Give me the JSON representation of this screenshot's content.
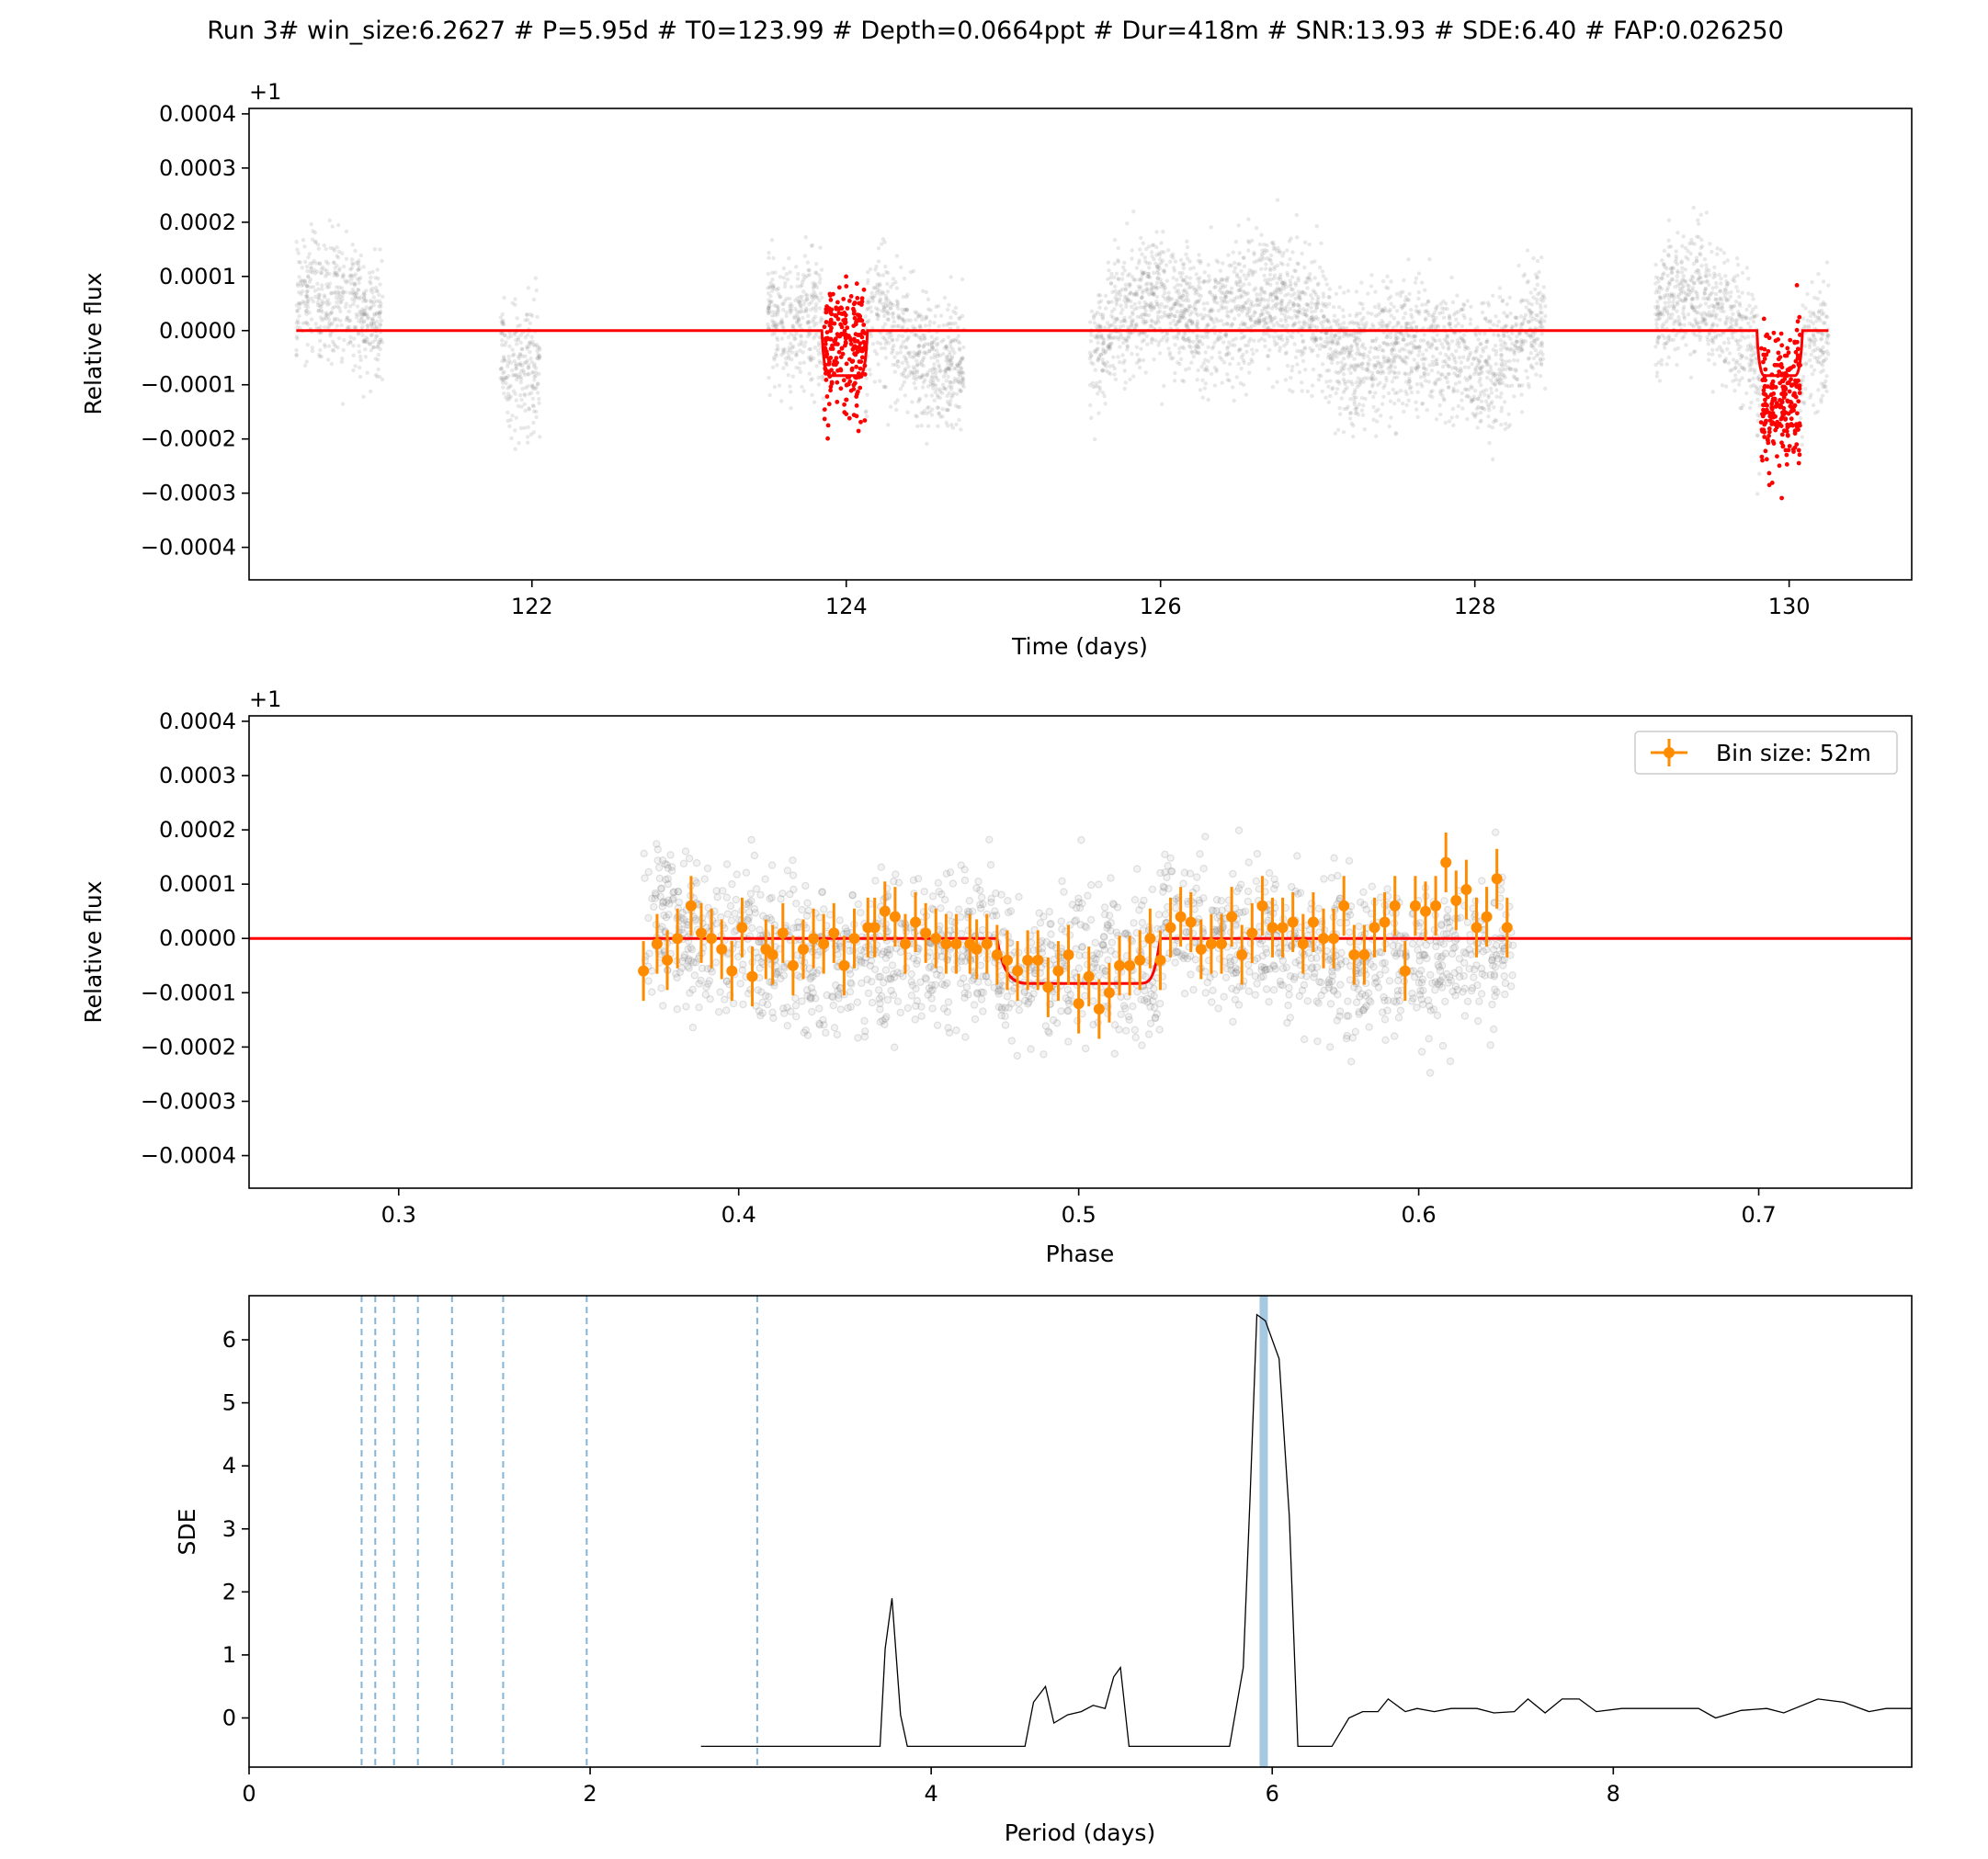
{
  "figure_title": "Run 3# win_size:6.2627 # P=5.95d # T0=123.99 # Depth=0.0664ppt # Dur=418m # SNR:13.93 # SDE:6.40 # FAP:0.026250",
  "colors": {
    "model": "#ff0000",
    "in_transit": "#ff0000",
    "raw_points": "#808080",
    "binned": "#ff8c00",
    "periodogram_line": "#000000",
    "harmonics": "#1f77b4",
    "period_band": "#1f77b4"
  },
  "chart_data": [
    {
      "type": "scatter",
      "name": "light-curve",
      "xlabel": "Time (days)",
      "ylabel": "Relative flux",
      "offset_label": "+1",
      "xlim": [
        120.2,
        130.78
      ],
      "ylim": [
        -0.00046,
        0.00041
      ],
      "xticks": [
        122,
        124,
        126,
        128,
        130
      ],
      "yticks": [
        -0.0004,
        -0.0003,
        -0.0002,
        -0.0001,
        0.0,
        0.0001,
        0.0002,
        0.0003,
        0.0004
      ],
      "ytick_labels": [
        "−0.0004",
        "−0.0003",
        "−0.0002",
        "−0.0001",
        "0.0000",
        "0.0001",
        "0.0002",
        "0.0003",
        "0.0004"
      ],
      "segments": [
        [
          120.5,
          121.05
        ],
        [
          121.8,
          122.05
        ],
        [
          123.5,
          124.75
        ],
        [
          125.55,
          128.45
        ],
        [
          129.15,
          130.25
        ]
      ],
      "in_transit_windows": [
        [
          123.86,
          124.12
        ],
        [
          129.82,
          130.07
        ]
      ],
      "model": {
        "baseline": 0.0,
        "depth": -8.3e-05,
        "x_start": 120.5,
        "x_end": 130.25,
        "transits": [
          {
            "t0": 123.99,
            "half_width": 0.145,
            "ingress": 0.04,
            "gaps_after": [
              124.75,
              125.55
            ]
          },
          {
            "t0": 129.94,
            "half_width": 0.145,
            "ingress": 0.04
          }
        ]
      }
    },
    {
      "type": "scatter",
      "name": "phase-folded",
      "xlabel": "Phase",
      "ylabel": "Relative flux",
      "offset_label": "+1",
      "xlim": [
        0.256,
        0.745
      ],
      "ylim": [
        -0.00046,
        0.00041
      ],
      "xticks": [
        0.3,
        0.4,
        0.5,
        0.6,
        0.7
      ],
      "xtick_labels": [
        "0.3",
        "0.4",
        "0.5",
        "0.6",
        "0.7"
      ],
      "yticks": [
        -0.0004,
        -0.0003,
        -0.0002,
        -0.0001,
        0.0,
        0.0001,
        0.0002,
        0.0003,
        0.0004
      ],
      "ytick_labels": [
        "−0.0004",
        "−0.0003",
        "−0.0002",
        "−0.0001",
        "0.0000",
        "0.0001",
        "0.0002",
        "0.0003",
        "0.0004"
      ],
      "phase_range": [
        0.372,
        0.628
      ],
      "legend": {
        "label": "Bin size: 52m",
        "position": "upper right"
      },
      "model": {
        "baseline": 0.0,
        "depth": -8.3e-05,
        "ingress_start": 0.476,
        "flat_start": 0.486,
        "flat_end": 0.517,
        "egress_end": 0.524,
        "x_start": 0.256,
        "x_end": 0.745
      },
      "binned": {
        "x": [
          0.372,
          0.376,
          0.379,
          0.382,
          0.386,
          0.389,
          0.392,
          0.395,
          0.398,
          0.401,
          0.404,
          0.408,
          0.41,
          0.413,
          0.416,
          0.419,
          0.422,
          0.425,
          0.428,
          0.431,
          0.434,
          0.438,
          0.44,
          0.443,
          0.446,
          0.449,
          0.452,
          0.455,
          0.458,
          0.461,
          0.464,
          0.468,
          0.47,
          0.473,
          0.476,
          0.479,
          0.482,
          0.485,
          0.488,
          0.491,
          0.494,
          0.497,
          0.5,
          0.503,
          0.506,
          0.509,
          0.512,
          0.515,
          0.518,
          0.521,
          0.524,
          0.527,
          0.53,
          0.533,
          0.536,
          0.539,
          0.542,
          0.545,
          0.548,
          0.551,
          0.554,
          0.557,
          0.56,
          0.563,
          0.566,
          0.569,
          0.572,
          0.575,
          0.578,
          0.581,
          0.584,
          0.587,
          0.59,
          0.593,
          0.596,
          0.599,
          0.602,
          0.605,
          0.608,
          0.611,
          0.614,
          0.617,
          0.62,
          0.623,
          0.626
        ],
        "y": [
          -6e-05,
          -1e-05,
          -4e-05,
          0.0,
          6e-05,
          1e-05,
          0.0,
          -2e-05,
          -6e-05,
          2e-05,
          -7e-05,
          -2e-05,
          -3e-05,
          1e-05,
          -5e-05,
          -2e-05,
          0.0,
          -1e-05,
          1e-05,
          -5e-05,
          0.0,
          2e-05,
          2e-05,
          5e-05,
          4e-05,
          -1e-05,
          3e-05,
          1e-05,
          0.0,
          -1e-05,
          -1e-05,
          -1e-05,
          -2e-05,
          -1e-05,
          -3e-05,
          -4e-05,
          -6e-05,
          -4e-05,
          -4e-05,
          -9e-05,
          -6e-05,
          -3e-05,
          -0.00012,
          -7e-05,
          -0.00013,
          -0.0001,
          -5e-05,
          -5e-05,
          -4e-05,
          0.0,
          -4e-05,
          2e-05,
          4e-05,
          3e-05,
          -2e-05,
          -1e-05,
          -1e-05,
          4e-05,
          -3e-05,
          1e-05,
          6e-05,
          2e-05,
          2e-05,
          3e-05,
          -1e-05,
          3e-05,
          0.0,
          0.0,
          6e-05,
          -3e-05,
          -3e-05,
          2e-05,
          3e-05,
          6e-05,
          -6e-05,
          6e-05,
          5e-05,
          6e-05,
          0.00014,
          7e-05,
          9e-05,
          2e-05,
          4e-05,
          0.00011,
          2e-05
        ],
        "yerr": 5.5e-05
      }
    },
    {
      "type": "line",
      "name": "periodogram",
      "xlabel": "Period (days)",
      "ylabel": "SDE",
      "xlim": [
        0,
        9.75
      ],
      "ylim": [
        -0.78,
        6.7
      ],
      "xticks": [
        0,
        2,
        4,
        6,
        8
      ],
      "yticks": [
        0,
        1,
        2,
        3,
        4,
        5,
        6
      ],
      "period": 5.95,
      "harmonics": [
        0.66,
        0.74,
        0.85,
        0.99,
        1.19,
        1.49,
        1.98,
        2.98
      ],
      "x": [
        2.65,
        3.7,
        3.73,
        3.77,
        3.82,
        3.86,
        4.55,
        4.6,
        4.67,
        4.72,
        4.8,
        4.88,
        4.95,
        5.02,
        5.07,
        5.11,
        5.16,
        5.23,
        5.75,
        5.83,
        5.87,
        5.91,
        5.96,
        6.04,
        6.1,
        6.15,
        6.2,
        6.35,
        6.45,
        6.53,
        6.62,
        6.68,
        6.78,
        6.85,
        6.95,
        7.05,
        7.2,
        7.3,
        7.42,
        7.5,
        7.6,
        7.7,
        7.8,
        7.9,
        8.05,
        8.2,
        8.5,
        8.6,
        8.75,
        8.9,
        9.0,
        9.2,
        9.35,
        9.5,
        9.6,
        9.75
      ],
      "y": [
        -0.45,
        -0.45,
        1.1,
        1.9,
        0.05,
        -0.45,
        -0.45,
        0.25,
        0.5,
        -0.08,
        0.05,
        0.1,
        0.2,
        0.15,
        0.65,
        0.8,
        -0.45,
        -0.45,
        -0.45,
        0.8,
        3.5,
        6.4,
        6.3,
        5.7,
        3.2,
        -0.45,
        -0.45,
        -0.45,
        0.0,
        0.1,
        0.1,
        0.3,
        0.1,
        0.15,
        0.1,
        0.15,
        0.15,
        0.08,
        0.1,
        0.3,
        0.08,
        0.3,
        0.3,
        0.1,
        0.15,
        0.15,
        0.15,
        0.0,
        0.12,
        0.15,
        0.08,
        0.3,
        0.25,
        0.1,
        0.15,
        0.15
      ]
    }
  ]
}
